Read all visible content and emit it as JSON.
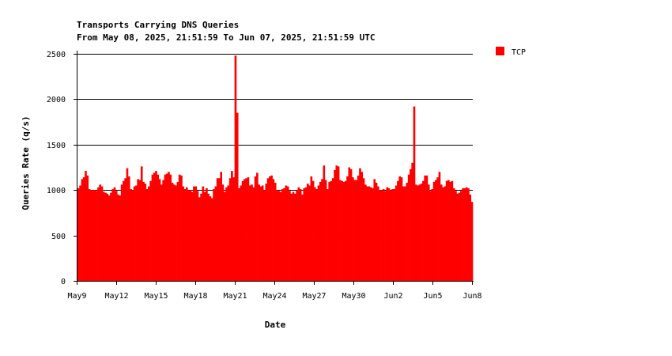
{
  "chart_data": {
    "type": "bar",
    "title": "Transports Carrying DNS Queries",
    "subtitle": "From May 08, 2025, 21:51:59 To Jun 07, 2025, 21:51:59 UTC",
    "xlabel": "Date",
    "ylabel": "Queries Rate (q/s)",
    "ylim": [
      0,
      2500
    ],
    "yticks": [
      0,
      500,
      1000,
      1500,
      2000,
      2500
    ],
    "xlim": [
      "2025-05-09",
      "2025-06-08"
    ],
    "xticks": [
      "May9",
      "May12",
      "May15",
      "May18",
      "May21",
      "May24",
      "May27",
      "May30",
      "Jun2",
      "Jun5",
      "Jun8"
    ],
    "grid": true,
    "legend": "top-right",
    "series": [
      {
        "name": "TCP",
        "color": "#ff0000",
        "values": [
          1020,
          1050,
          1120,
          1140,
          1210,
          1160,
          1010,
          1000,
          1000,
          1000,
          990,
          1030,
          1060,
          1040,
          980,
          970,
          960,
          940,
          970,
          1010,
          1030,
          990,
          950,
          940,
          1060,
          1100,
          1130,
          1240,
          1150,
          1010,
          1000,
          1040,
          1050,
          1120,
          1110,
          1260,
          1090,
          1070,
          1010,
          1040,
          1100,
          1170,
          1190,
          1210,
          1170,
          1120,
          1060,
          1110,
          1170,
          1180,
          1200,
          1170,
          1080,
          1060,
          1050,
          1090,
          1170,
          1160,
          1040,
          1010,
          1030,
          1000,
          1000,
          980,
          1040,
          1040,
          990,
          920,
          960,
          1040,
          980,
          1020,
          960,
          930,
          910,
          1010,
          1040,
          1130,
          1130,
          1200,
          1060,
          980,
          1030,
          1050,
          1130,
          1210,
          1140,
          2480,
          1850,
          1020,
          1050,
          1100,
          1120,
          1130,
          1140,
          1050,
          1060,
          1030,
          1150,
          1190,
          1060,
          1040,
          1050,
          1000,
          1070,
          1130,
          1150,
          1160,
          1120,
          1080,
          1000,
          990,
          980,
          1010,
          1020,
          1050,
          1040,
          990,
          960,
          980,
          960,
          1000,
          1030,
          1010,
          950,
          1020,
          1030,
          1070,
          1050,
          1150,
          1100,
          1030,
          1010,
          1050,
          1090,
          1120,
          1270,
          1110,
          1010,
          1090,
          1100,
          1130,
          1220,
          1270,
          1260,
          1110,
          1100,
          1090,
          1100,
          1150,
          1250,
          1230,
          1140,
          1110,
          1110,
          1160,
          1240,
          1200,
          1130,
          1060,
          1040,
          1040,
          1030,
          1020,
          1120,
          1080,
          1040,
          1000,
          1000,
          1010,
          990,
          1030,
          1020,
          1000,
          1010,
          1010,
          1050,
          1100,
          1150,
          1140,
          1040,
          1040,
          1080,
          1170,
          1230,
          1300,
          1920,
          1060,
          1050,
          1060,
          1070,
          1100,
          1160,
          1160,
          1060,
          990,
          1010,
          1090,
          1110,
          1140,
          1200,
          1060,
          1030,
          1040,
          1100,
          1110,
          1090,
          1100,
          1020,
          990,
          960,
          970,
          990,
          1020,
          1020,
          1030,
          1020,
          950,
          870
        ]
      }
    ]
  }
}
